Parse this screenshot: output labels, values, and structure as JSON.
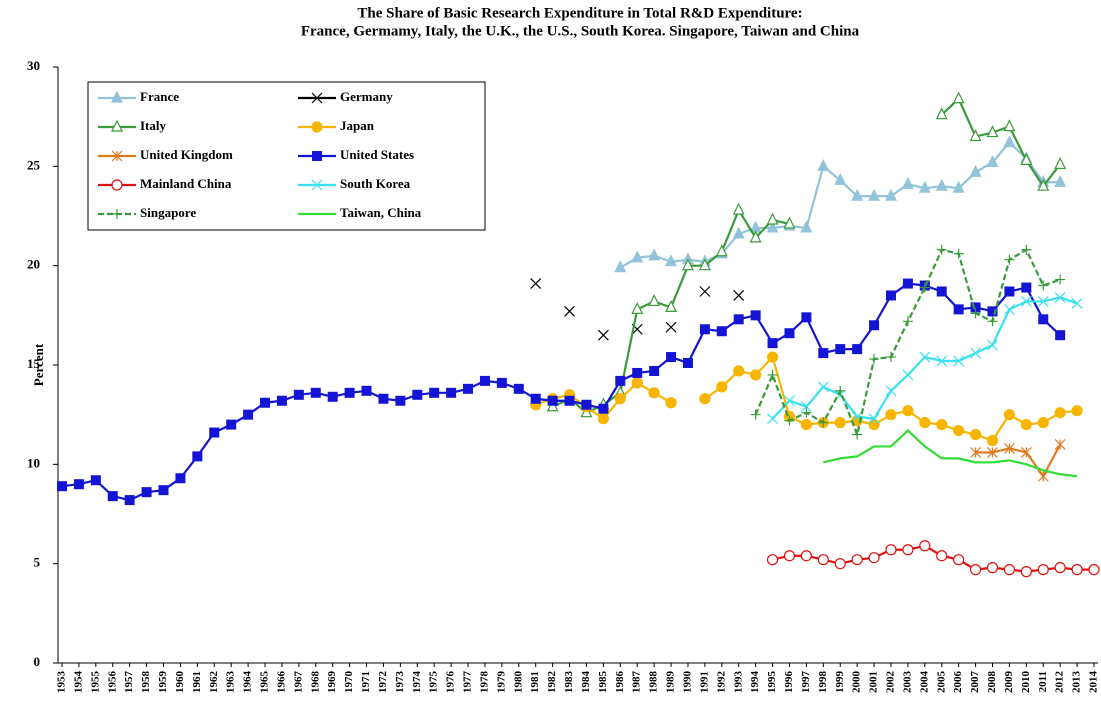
{
  "chart_data": {
    "type": "line",
    "title": [
      "The Share of Basic Research Expenditure in Total R&D Expenditure:",
      "France, Germamy, Italy, the U.K., the U.S., South Korea. Singapore, Taiwan and China"
    ],
    "y_label": "Percent",
    "categories": [
      "1953",
      "1954",
      "1955",
      "1956",
      "1957",
      "1958",
      "1959",
      "1960",
      "1961",
      "1962",
      "1963",
      "1964",
      "1965",
      "1966",
      "1967",
      "1968",
      "1969",
      "1970",
      "1971",
      "1972",
      "1973",
      "1974",
      "1975",
      "1976",
      "1977",
      "1978",
      "1979",
      "1980",
      "1981",
      "1982",
      "1983",
      "1984",
      "1985",
      "1986",
      "1987",
      "1988",
      "1989",
      "1990",
      "1991",
      "1992",
      "1993",
      "1994",
      "1995",
      "1996",
      "1997",
      "1998",
      "1999",
      "2000",
      "2001",
      "2002",
      "2003",
      "2004",
      "2005",
      "2006",
      "2007",
      "2008",
      "2009",
      "2010",
      "2011",
      "2012",
      "2013",
      "2014"
    ],
    "ylim": [
      0,
      30
    ],
    "yticks": [
      0,
      5,
      10,
      15,
      20,
      25,
      30
    ],
    "series": [
      {
        "name": "France",
        "color": "#92c3da",
        "marker": "triangle",
        "values": [
          null,
          null,
          null,
          null,
          null,
          null,
          null,
          null,
          null,
          null,
          null,
          null,
          null,
          null,
          null,
          null,
          null,
          null,
          null,
          null,
          null,
          null,
          null,
          null,
          null,
          null,
          null,
          null,
          null,
          null,
          null,
          null,
          null,
          19.9,
          20.4,
          20.5,
          20.2,
          20.3,
          20.2,
          20.6,
          21.6,
          21.9,
          21.9,
          22.0,
          21.9,
          25.0,
          24.3,
          23.5,
          23.5,
          23.5,
          24.1,
          23.9,
          24.0,
          23.9,
          24.7,
          25.2,
          26.2,
          25.4,
          24.2,
          24.2,
          null,
          null
        ]
      },
      {
        "name": "Germany",
        "color": "#000000",
        "marker": "x",
        "values": [
          null,
          null,
          null,
          null,
          null,
          null,
          null,
          null,
          null,
          null,
          null,
          null,
          null,
          null,
          null,
          null,
          null,
          null,
          null,
          null,
          null,
          null,
          null,
          null,
          null,
          null,
          null,
          null,
          19.1,
          null,
          17.7,
          null,
          16.5,
          null,
          16.8,
          null,
          16.9,
          null,
          18.7,
          null,
          18.5,
          null,
          null,
          null,
          null,
          null,
          null,
          null,
          null,
          null,
          null,
          null,
          null,
          null,
          null,
          null,
          null,
          null,
          null,
          null,
          null,
          null
        ]
      },
      {
        "name": "Italy",
        "color": "#3a9a3a",
        "marker": "triangle-open",
        "values": [
          null,
          null,
          null,
          null,
          null,
          null,
          null,
          null,
          null,
          null,
          null,
          null,
          null,
          null,
          null,
          null,
          null,
          null,
          null,
          null,
          null,
          null,
          null,
          null,
          null,
          null,
          null,
          null,
          null,
          12.9,
          13.3,
          12.6,
          13.0,
          13.6,
          17.8,
          18.2,
          17.9,
          20.0,
          20.0,
          20.7,
          22.8,
          21.4,
          22.3,
          22.1,
          null,
          null,
          null,
          null,
          null,
          null,
          null,
          null,
          27.6,
          28.4,
          26.5,
          26.7,
          27.0,
          25.3,
          24.0,
          25.1,
          null,
          null
        ]
      },
      {
        "name": "Japan",
        "color": "#f7b500",
        "marker": "circle",
        "values": [
          null,
          null,
          null,
          null,
          null,
          null,
          null,
          null,
          null,
          null,
          null,
          null,
          null,
          null,
          null,
          null,
          null,
          null,
          null,
          null,
          null,
          null,
          null,
          null,
          null,
          null,
          null,
          null,
          13.0,
          13.3,
          13.5,
          12.9,
          12.3,
          13.3,
          14.1,
          13.6,
          13.1,
          null,
          13.3,
          13.9,
          14.7,
          14.5,
          15.4,
          12.4,
          12.0,
          12.1,
          12.1,
          12.2,
          12.0,
          12.5,
          12.7,
          12.1,
          12.0,
          11.7,
          11.5,
          11.2,
          12.5,
          12.0,
          12.1,
          12.6,
          12.7,
          null
        ]
      },
      {
        "name": "United Kingdom",
        "color": "#e07b20",
        "marker": "asterisk",
        "values": [
          null,
          null,
          null,
          null,
          null,
          null,
          null,
          null,
          null,
          null,
          null,
          null,
          null,
          null,
          null,
          null,
          null,
          null,
          null,
          null,
          null,
          null,
          null,
          null,
          null,
          null,
          null,
          null,
          null,
          null,
          null,
          null,
          null,
          null,
          null,
          null,
          null,
          null,
          null,
          null,
          null,
          null,
          null,
          null,
          null,
          null,
          null,
          null,
          null,
          null,
          null,
          null,
          null,
          null,
          10.6,
          10.6,
          10.8,
          10.6,
          9.4,
          11.0,
          null,
          null
        ]
      },
      {
        "name": "United States",
        "color": "#1414d4",
        "marker": "square",
        "values": [
          8.9,
          9.0,
          9.2,
          8.4,
          8.2,
          8.6,
          8.7,
          9.3,
          10.4,
          11.6,
          12.0,
          12.5,
          13.1,
          13.2,
          13.5,
          13.6,
          13.4,
          13.6,
          13.7,
          13.3,
          13.2,
          13.5,
          13.6,
          13.6,
          13.8,
          14.2,
          14.1,
          13.8,
          13.3,
          13.2,
          13.2,
          13.0,
          12.8,
          14.2,
          14.6,
          14.7,
          15.4,
          15.1,
          16.8,
          16.7,
          17.3,
          17.5,
          16.1,
          16.6,
          17.4,
          15.6,
          15.8,
          15.8,
          17.0,
          18.5,
          19.1,
          19.0,
          18.7,
          17.8,
          17.9,
          17.7,
          18.7,
          18.9,
          17.3,
          16.5,
          null,
          null
        ]
      },
      {
        "name": "Mainland China",
        "color": "#e01010",
        "marker": "circle-open",
        "values": [
          null,
          null,
          null,
          null,
          null,
          null,
          null,
          null,
          null,
          null,
          null,
          null,
          null,
          null,
          null,
          null,
          null,
          null,
          null,
          null,
          null,
          null,
          null,
          null,
          null,
          null,
          null,
          null,
          null,
          null,
          null,
          null,
          null,
          null,
          null,
          null,
          null,
          null,
          null,
          null,
          null,
          null,
          5.2,
          5.4,
          5.4,
          5.2,
          5.0,
          5.2,
          5.3,
          5.7,
          5.7,
          5.9,
          5.4,
          5.2,
          4.7,
          4.8,
          4.7,
          4.6,
          4.7,
          4.8,
          4.7,
          4.7
        ]
      },
      {
        "name": "South Korea",
        "color": "#38e0f0",
        "marker": "x",
        "values": [
          null,
          null,
          null,
          null,
          null,
          null,
          null,
          null,
          null,
          null,
          null,
          null,
          null,
          null,
          null,
          null,
          null,
          null,
          null,
          null,
          null,
          null,
          null,
          null,
          null,
          null,
          null,
          null,
          null,
          null,
          null,
          null,
          null,
          null,
          null,
          null,
          null,
          null,
          null,
          null,
          null,
          null,
          12.3,
          13.2,
          12.9,
          13.9,
          13.5,
          12.4,
          12.3,
          13.7,
          14.5,
          15.4,
          15.2,
          15.2,
          15.6,
          16.0,
          17.8,
          18.2,
          18.2,
          18.4,
          18.1,
          null
        ]
      },
      {
        "name": "Singapore",
        "color": "#3a9a3a",
        "marker": "plus",
        "dash": true,
        "values": [
          null,
          null,
          null,
          null,
          null,
          null,
          null,
          null,
          null,
          null,
          null,
          null,
          null,
          null,
          null,
          null,
          null,
          null,
          null,
          null,
          null,
          null,
          null,
          null,
          null,
          null,
          null,
          null,
          null,
          null,
          null,
          null,
          null,
          null,
          null,
          null,
          null,
          null,
          null,
          null,
          null,
          12.5,
          14.5,
          12.2,
          12.6,
          12.1,
          13.7,
          11.5,
          15.3,
          15.4,
          17.2,
          18.9,
          20.8,
          20.6,
          17.6,
          17.2,
          20.3,
          20.8,
          19.0,
          19.3,
          null,
          null
        ]
      },
      {
        "name": "Taiwan, China",
        "color": "#33dd33",
        "marker": "none",
        "values": [
          null,
          null,
          null,
          null,
          null,
          null,
          null,
          null,
          null,
          null,
          null,
          null,
          null,
          null,
          null,
          null,
          null,
          null,
          null,
          null,
          null,
          null,
          null,
          null,
          null,
          null,
          null,
          null,
          null,
          null,
          null,
          null,
          null,
          null,
          null,
          null,
          null,
          null,
          null,
          null,
          null,
          null,
          null,
          null,
          null,
          10.1,
          10.3,
          10.4,
          10.9,
          10.9,
          11.7,
          10.9,
          10.3,
          10.3,
          10.1,
          10.1,
          10.2,
          10.0,
          9.7,
          9.5,
          9.4,
          null
        ]
      }
    ]
  }
}
